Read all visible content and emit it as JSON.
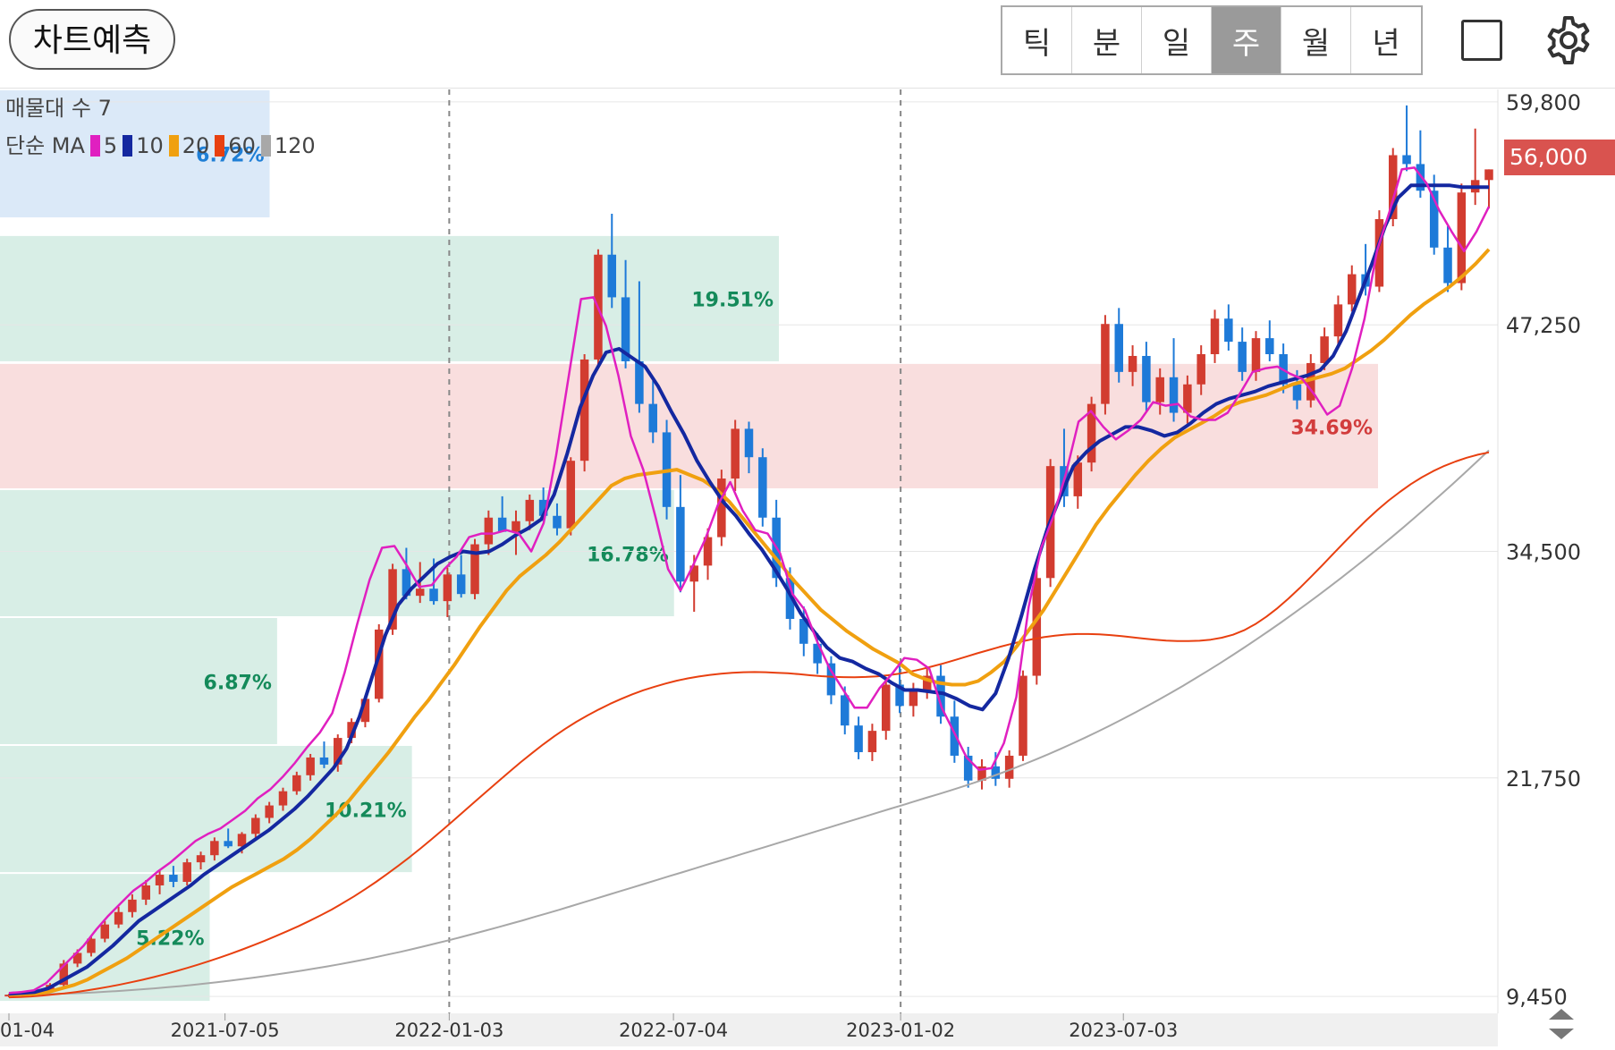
{
  "toolbar": {
    "predict_label": "차트예측",
    "periods": [
      {
        "label": "틱",
        "active": false
      },
      {
        "label": "분",
        "active": false
      },
      {
        "label": "일",
        "active": false
      },
      {
        "label": "주",
        "active": true
      },
      {
        "label": "월",
        "active": false
      },
      {
        "label": "년",
        "active": false
      }
    ],
    "square_icon": "square-outline-icon",
    "settings_icon": "gear-icon"
  },
  "legend": {
    "volume_profile": "매물대 수 7",
    "ma_prefix": "단순 MA",
    "ma": [
      {
        "period": "5",
        "color": "#e020c0"
      },
      {
        "period": "10",
        "color": "#1428a0"
      },
      {
        "period": "20",
        "color": "#f0a010"
      },
      {
        "period": "60",
        "color": "#e84010"
      },
      {
        "period": "120",
        "color": "#a8a8a8"
      }
    ]
  },
  "current_price": "56,000",
  "chart_data": {
    "type": "candlestick",
    "interval": "weekly",
    "yticks": [
      "59,800",
      "47,250",
      "34,500",
      "21,750",
      "9,450"
    ],
    "xticks": [
      "01-04",
      "2021-07-05",
      "2022-01-03",
      "2022-07-04",
      "2023-01-02",
      "2023-07-03"
    ],
    "ylim": [
      8500,
      60500
    ],
    "volume_profile_zones": [
      {
        "low": 53300,
        "high": 60500,
        "label": "6.72%",
        "extent": 0.18,
        "fill": "#dbe9f8",
        "label_color": "#1f7fd6"
      },
      {
        "low": 45200,
        "high": 52300,
        "label": "19.51%",
        "extent": 0.52,
        "fill": "#d8eee6",
        "label_color": "#148a5a"
      },
      {
        "low": 38000,
        "high": 45100,
        "label": "34.69%",
        "extent": 0.92,
        "fill": "#f9dede",
        "label_color": "#d23c3c"
      },
      {
        "low": 30800,
        "high": 38000,
        "label": "16.78%",
        "extent": 0.45,
        "fill": "#d8eee6",
        "label_color": "#148a5a"
      },
      {
        "low": 23600,
        "high": 30800,
        "label": "6.87%",
        "extent": 0.185,
        "fill": "#d8eee6",
        "label_color": "#148a5a"
      },
      {
        "low": 16400,
        "high": 23600,
        "label": "10.21%",
        "extent": 0.275,
        "fill": "#d8eee6",
        "label_color": "#148a5a"
      },
      {
        "low": 9200,
        "high": 16400,
        "label": "5.22%",
        "extent": 0.14,
        "fill": "#d8eee6",
        "label_color": "#148a5a"
      }
    ],
    "ma5": [
      9650,
      9700,
      9800,
      10200,
      10900,
      11600,
      12300,
      13200,
      14000,
      14700,
      15400,
      15900,
      16500,
      17000,
      17600,
      18200,
      18600,
      18900,
      19400,
      19900,
      20600,
      21100,
      21800,
      22600,
      23500,
      24300,
      25400,
      27700,
      30400,
      32900,
      34700,
      34800,
      33700,
      32500,
      32600,
      33500,
      34200,
      35300,
      35500,
      35500,
      35700,
      35500,
      34500,
      36100,
      39900,
      44300,
      48700,
      48800,
      47200,
      44400,
      41000,
      39100,
      36400,
      33500,
      32300,
      33700,
      35200,
      37100,
      38400,
      36800,
      35700,
      35500,
      34400,
      32100,
      31200,
      29400,
      27900,
      26800,
      25700,
      25700,
      26800,
      27600,
      28500,
      28400,
      27900,
      25700,
      24300,
      22900,
      22200,
      22300,
      23700,
      26300,
      31400,
      34700,
      36500,
      38900,
      41800,
      42400,
      41500,
      40800,
      41300,
      41900,
      42900,
      42700,
      42800,
      42100,
      41900,
      41900,
      42300,
      43400,
      44600,
      44800,
      44900,
      44500,
      44200,
      43300,
      42200,
      42700,
      44800,
      47600,
      51400,
      53600,
      56000,
      56100,
      55200,
      53700,
      52500,
      51400,
      52500,
      53900
    ],
    "ma10": [
      9600,
      9650,
      9700,
      9900,
      10300,
      10700,
      11100,
      11700,
      12300,
      13000,
      13700,
      14200,
      14700,
      15200,
      15700,
      16300,
      16800,
      17300,
      17800,
      18300,
      18800,
      19400,
      20000,
      20700,
      21500,
      22300,
      23400,
      25200,
      27500,
      29800,
      31500,
      32400,
      33100,
      33800,
      34200,
      34500,
      34400,
      34500,
      34900,
      35400,
      35800,
      36300,
      37700,
      40000,
      42600,
      44400,
      45700,
      45900,
      45400,
      44900,
      43800,
      42400,
      41100,
      39600,
      38400,
      37300,
      36500,
      35500,
      34600,
      33500,
      32300,
      31000,
      30000,
      29100,
      28500,
      28300,
      27900,
      27600,
      27100,
      26700,
      26700,
      26600,
      26500,
      26200,
      25800,
      25600,
      26500,
      28500,
      30900,
      33500,
      35800,
      37600,
      39300,
      40100,
      40700,
      41100,
      41500,
      41500,
      41300,
      41000,
      41200,
      41700,
      42300,
      42800,
      43100,
      43300,
      43500,
      43800,
      44000,
      44200,
      44400,
      44700,
      45500,
      46900,
      48800,
      50700,
      52800,
      54400,
      55100,
      55100,
      55100,
      55100,
      55000,
      55000,
      55000
    ],
    "ma20": [
      9550,
      9570,
      9600,
      9700,
      9900,
      10100,
      10400,
      10800,
      11200,
      11600,
      12100,
      12600,
      13100,
      13600,
      14100,
      14600,
      15100,
      15600,
      16000,
      16400,
      16800,
      17200,
      17700,
      18300,
      19000,
      19700,
      20500,
      21400,
      22300,
      23200,
      24200,
      25200,
      26100,
      27100,
      28100,
      29200,
      30300,
      31300,
      32300,
      33100,
      33700,
      34300,
      35000,
      35800,
      36600,
      37400,
      38200,
      38600,
      38800,
      38900,
      39000,
      39100,
      38800,
      38500,
      38000,
      37300,
      36400,
      35500,
      34600,
      33700,
      32800,
      32000,
      31200,
      30600,
      30000,
      29500,
      29000,
      28600,
      28200,
      27600,
      27300,
      27100,
      27000,
      27000,
      27200,
      27700,
      28300,
      29200,
      30200,
      31200,
      32400,
      33600,
      34800,
      36000,
      37000,
      37900,
      38800,
      39600,
      40300,
      40900,
      41300,
      41700,
      42100,
      42600,
      42900,
      43100,
      43300,
      43600,
      43900,
      44100,
      44300,
      44500,
      44800,
      45300,
      45800,
      46400,
      47100,
      47800,
      48400,
      48900,
      49400,
      50000,
      50700,
      51500
    ],
    "ma60": [
      9400,
      9420,
      9450,
      9500,
      9560,
      9620,
      9700,
      9790,
      9890,
      10000,
      10120,
      10250,
      10390,
      10540,
      10700,
      10870,
      11050,
      11240,
      11440,
      11650,
      11870,
      12100,
      12340,
      12590,
      12850,
      13120,
      13400,
      13700,
      14010,
      14340,
      14700,
      15080,
      15480,
      15900,
      16350,
      16810,
      17290,
      17790,
      18310,
      18840,
      19380,
      19930,
      20480,
      21030,
      21570,
      22110,
      22640,
      23140,
      23630,
      24090,
      24520,
      24910,
      25270,
      25600,
      25910,
      26190,
      26450,
      26680,
      26880,
      27060,
      27220,
      27350,
      27460,
      27550,
      27620,
      27670,
      27700,
      27710,
      27700,
      27670,
      27640,
      27590,
      27530,
      27480,
      27440,
      27420,
      27410,
      27430,
      27470,
      27530,
      27620,
      27730,
      27870,
      28030,
      28200,
      28380,
      28570,
      28760,
      28940,
      29120,
      29280,
      29430,
      29560,
      29670,
      29760,
      29820,
      29850,
      29850,
      29830,
      29790,
      29730,
      29660,
      29590,
      29530,
      29480,
      29450,
      29450,
      29470,
      29530,
      29640,
      29810,
      30060,
      30400,
      30820,
      31310,
      31850,
      32440,
      33060,
      33700,
      34360,
      35010,
      35650,
      36260,
      36840,
      37370,
      37850,
      38290,
      38680,
      39020,
      39310,
      39560,
      39770,
      39940,
      40070
    ],
    "ma120": [
      9550,
      9560,
      9570,
      9580,
      9600,
      9620,
      9650,
      9680,
      9720,
      9760,
      9810,
      9860,
      9910,
      9970,
      10030,
      10100,
      10170,
      10250,
      10330,
      10420,
      10510,
      10600,
      10700,
      10800,
      10910,
      11020,
      11140,
      11260,
      11390,
      11520,
      11660,
      11810,
      11960,
      12120,
      12280,
      12450,
      12620,
      12800,
      12980,
      13160,
      13350,
      13540,
      13730,
      13930,
      14130,
      14330,
      14540,
      14750,
      14960,
      15170,
      15380,
      15590,
      15800,
      16010,
      16220,
      16430,
      16640,
      16850,
      17060,
      17270,
      17480,
      17690,
      17900,
      18110,
      18320,
      18530,
      18740,
      18950,
      19160,
      19370,
      19580,
      19790,
      20000,
      20210,
      20420,
      20630,
      20840,
      21050,
      21270,
      21500,
      21740,
      21990,
      22250,
      22520,
      22800,
      23090,
      23390,
      23700,
      24020,
      24350,
      24690,
      25040,
      25400,
      25770,
      26150,
      26540,
      26940,
      27350,
      27770,
      28200,
      28640,
      29090,
      29550,
      30020,
      30500,
      30990,
      31490,
      32000,
      32520,
      33050,
      33590,
      34140,
      34700,
      35270,
      35850,
      36440,
      37040,
      37650,
      38270,
      38900,
      39540,
      40190
    ],
    "candles": [
      [
        9500,
        9600,
        9400,
        9550
      ],
      [
        9550,
        9700,
        9450,
        9650
      ],
      [
        9650,
        9800,
        9550,
        9750
      ],
      [
        9750,
        10200,
        9700,
        10100
      ],
      [
        10100,
        11500,
        10000,
        11300
      ],
      [
        11300,
        12100,
        11100,
        11900
      ],
      [
        11900,
        12900,
        11700,
        12700
      ],
      [
        12700,
        13700,
        12500,
        13500
      ],
      [
        13500,
        14500,
        13300,
        14200
      ],
      [
        14200,
        15200,
        13900,
        14900
      ],
      [
        14900,
        16000,
        14600,
        15700
      ],
      [
        15700,
        16600,
        15200,
        16300
      ],
      [
        16300,
        16800,
        15600,
        15900
      ],
      [
        15900,
        17200,
        15700,
        17000
      ],
      [
        17000,
        17600,
        16600,
        17400
      ],
      [
        17400,
        18400,
        17100,
        18200
      ],
      [
        18200,
        18900,
        17800,
        17900
      ],
      [
        17900,
        18700,
        17500,
        18600
      ],
      [
        18600,
        19700,
        18400,
        19500
      ],
      [
        19500,
        20400,
        19200,
        20200
      ],
      [
        20200,
        21200,
        19900,
        21000
      ],
      [
        21000,
        22100,
        20800,
        21900
      ],
      [
        21900,
        23100,
        21600,
        22900
      ],
      [
        22900,
        23800,
        22300,
        22500
      ],
      [
        22500,
        24200,
        22100,
        24000
      ],
      [
        24000,
        25100,
        23700,
        24900
      ],
      [
        24900,
        26400,
        24600,
        26200
      ],
      [
        26200,
        30400,
        26000,
        30100
      ],
      [
        30100,
        33800,
        29800,
        33500
      ],
      [
        33500,
        34700,
        31800,
        32000
      ],
      [
        32000,
        33900,
        31600,
        32400
      ],
      [
        32400,
        34100,
        31500,
        31700
      ],
      [
        31700,
        33600,
        30800,
        33200
      ],
      [
        33200,
        34300,
        31900,
        32100
      ],
      [
        32100,
        35200,
        31800,
        34900
      ],
      [
        34900,
        36800,
        34300,
        36400
      ],
      [
        36400,
        37600,
        35900,
        35600
      ],
      [
        35600,
        36800,
        34300,
        36200
      ],
      [
        36200,
        37700,
        35700,
        37400
      ],
      [
        37400,
        38100,
        36200,
        36500
      ],
      [
        36500,
        37200,
        35400,
        35800
      ],
      [
        35800,
        39800,
        35400,
        39600
      ],
      [
        39600,
        45600,
        39000,
        45300
      ],
      [
        45300,
        51500,
        44800,
        51200
      ],
      [
        51200,
        53500,
        48200,
        48800
      ],
      [
        48800,
        50900,
        44800,
        45200
      ],
      [
        45200,
        49700,
        42300,
        42800
      ],
      [
        42800,
        44100,
        40600,
        41200
      ],
      [
        41200,
        41900,
        36300,
        37000
      ],
      [
        37000,
        38800,
        32200,
        32800
      ],
      [
        32800,
        34300,
        31100,
        33700
      ],
      [
        33700,
        35800,
        32900,
        35300
      ],
      [
        35300,
        39100,
        34800,
        38600
      ],
      [
        38600,
        41900,
        37900,
        41400
      ],
      [
        41400,
        41800,
        38900,
        39800
      ],
      [
        39800,
        40300,
        35900,
        36400
      ],
      [
        36400,
        37400,
        32500,
        33000
      ],
      [
        33000,
        33600,
        30100,
        30700
      ],
      [
        30700,
        31400,
        28600,
        29300
      ],
      [
        29300,
        29900,
        27600,
        28200
      ],
      [
        28200,
        28600,
        25900,
        26400
      ],
      [
        26400,
        26900,
        24200,
        24700
      ],
      [
        24700,
        25200,
        22800,
        23200
      ],
      [
        23200,
        24800,
        22700,
        24400
      ],
      [
        24400,
        27300,
        23900,
        27000
      ],
      [
        27000,
        28200,
        25400,
        25800
      ],
      [
        25800,
        27100,
        25200,
        26700
      ],
      [
        26700,
        27900,
        26200,
        27500
      ],
      [
        27500,
        28100,
        24800,
        25200
      ],
      [
        25200,
        26100,
        22600,
        23000
      ],
      [
        23000,
        23500,
        21200,
        21600
      ],
      [
        21600,
        22800,
        21100,
        22400
      ],
      [
        22400,
        23200,
        21300,
        21700
      ],
      [
        21700,
        23300,
        21200,
        23000
      ],
      [
        23000,
        27800,
        22700,
        27500
      ],
      [
        27500,
        33400,
        27000,
        33000
      ],
      [
        33000,
        39700,
        32500,
        39300
      ],
      [
        39300,
        41400,
        37000,
        37600
      ],
      [
        37600,
        39900,
        36900,
        39500
      ],
      [
        39500,
        43200,
        39000,
        42800
      ],
      [
        42800,
        47800,
        42200,
        47300
      ],
      [
        47300,
        48200,
        44000,
        44600
      ],
      [
        44600,
        46100,
        43800,
        45500
      ],
      [
        45500,
        46300,
        42400,
        42900
      ],
      [
        42900,
        44800,
        42200,
        44300
      ],
      [
        44300,
        46500,
        41800,
        42300
      ],
      [
        42300,
        44400,
        41700,
        43900
      ],
      [
        43900,
        46100,
        43300,
        45600
      ],
      [
        45600,
        48100,
        45100,
        47600
      ],
      [
        47600,
        48400,
        45800,
        46300
      ],
      [
        46300,
        47100,
        44100,
        44600
      ],
      [
        44600,
        46900,
        44100,
        46500
      ],
      [
        46500,
        47500,
        45200,
        45600
      ],
      [
        45600,
        46200,
        43400,
        43900
      ],
      [
        43900,
        44700,
        42500,
        43000
      ],
      [
        43000,
        45600,
        42600,
        45100
      ],
      [
        45100,
        47100,
        44700,
        46600
      ],
      [
        46600,
        48900,
        46100,
        48400
      ],
      [
        48400,
        50600,
        48000,
        50100
      ],
      [
        50100,
        51800,
        48900,
        49400
      ],
      [
        49400,
        53700,
        49100,
        53200
      ],
      [
        53200,
        57200,
        52800,
        56800
      ],
      [
        56800,
        59600,
        55900,
        56300
      ],
      [
        56300,
        58200,
        54400,
        54800
      ],
      [
        54800,
        55700,
        51200,
        51600
      ],
      [
        51600,
        52800,
        49100,
        49600
      ],
      [
        49600,
        55200,
        49200,
        54700
      ],
      [
        54700,
        58300,
        54000,
        55400
      ],
      [
        55400,
        56000,
        53800,
        56000
      ]
    ]
  }
}
